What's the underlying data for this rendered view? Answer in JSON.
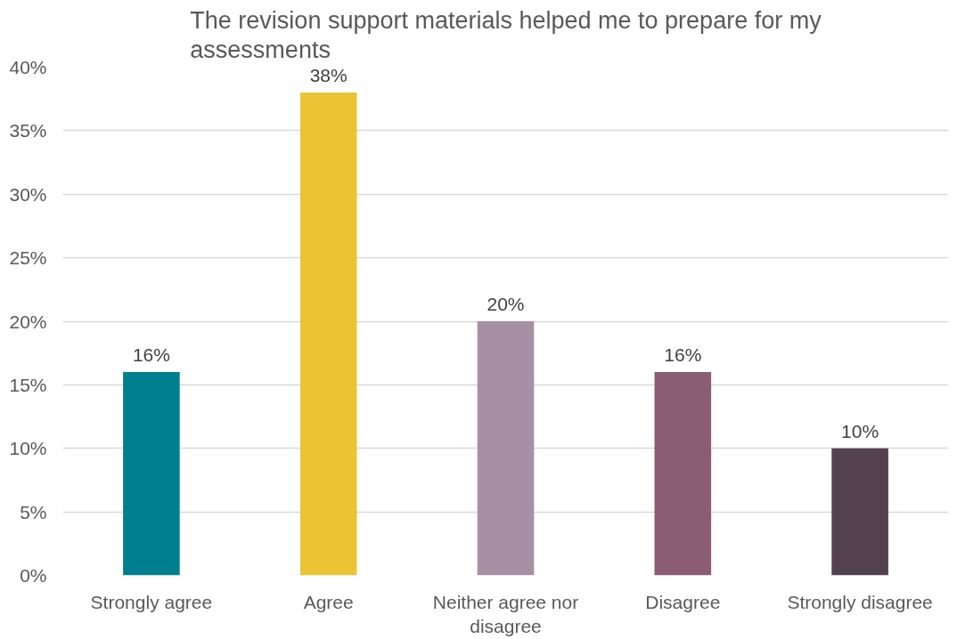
{
  "chart_data": {
    "type": "bar",
    "title": "The revision support materials helped me to prepare for my assessments",
    "categories": [
      "Strongly agree",
      "Agree",
      "Neither agree nor disagree",
      "Disagree",
      "Strongly disagree"
    ],
    "values": [
      16,
      38,
      20,
      16,
      10
    ],
    "colors": [
      "#00808e",
      "#ebc435",
      "#a78fa5",
      "#8a5d74",
      "#54414f"
    ],
    "value_labels": [
      "16%",
      "38%",
      "20%",
      "16%",
      "10%"
    ],
    "ylim": [
      0,
      40
    ],
    "yticks": [
      {
        "value": 0,
        "label": "0%"
      },
      {
        "value": 5,
        "label": "5%"
      },
      {
        "value": 10,
        "label": "10%"
      },
      {
        "value": 15,
        "label": "15%"
      },
      {
        "value": 20,
        "label": "20%"
      },
      {
        "value": 25,
        "label": "25%"
      },
      {
        "value": 30,
        "label": "30%"
      },
      {
        "value": 35,
        "label": "35%"
      },
      {
        "value": 40,
        "label": "40%"
      }
    ],
    "grid": "y"
  }
}
